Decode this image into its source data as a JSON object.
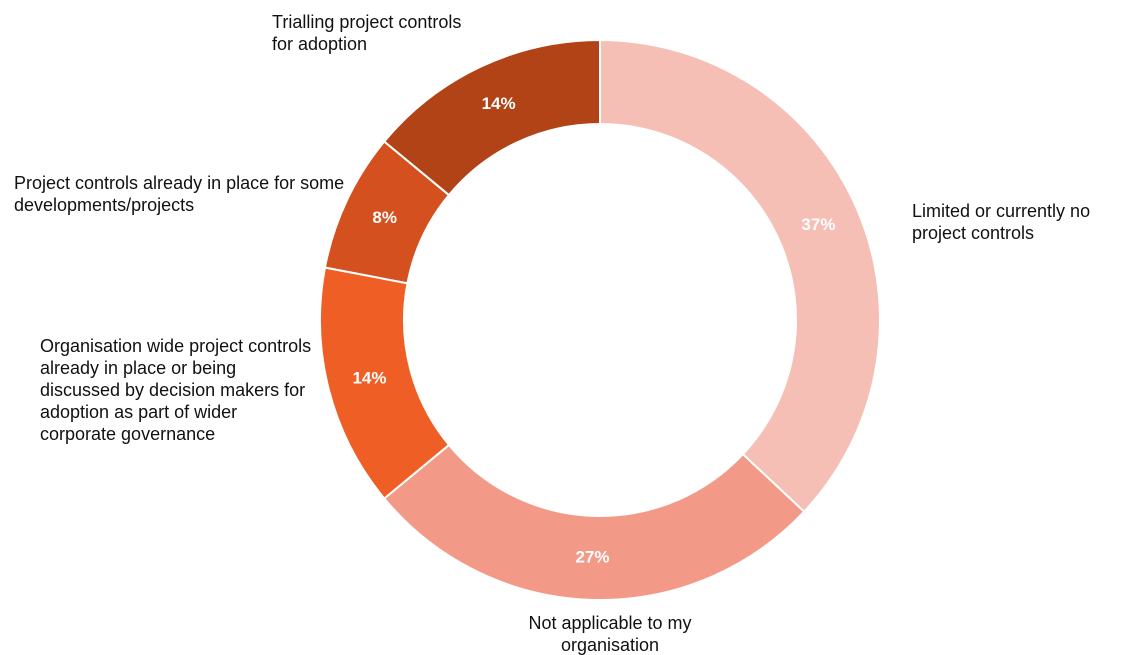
{
  "chart_data": {
    "type": "donut",
    "categories": [
      "Limited or currently no project controls",
      "Not applicable to my organisation",
      "Organisation wide project controls already in place or being discussed by decision makers for adoption as part of wider corporate governance",
      "Project controls already in place for some developments/projects",
      "Trialling project controls for adoption"
    ],
    "values": [
      37,
      27,
      14,
      8,
      14
    ],
    "value_labels": [
      "37%",
      "27%",
      "14%",
      "8%",
      "14%"
    ],
    "colors": [
      "#f6bfb5",
      "#f29a87",
      "#ef5f25",
      "#d4501f",
      "#b24316"
    ]
  }
}
